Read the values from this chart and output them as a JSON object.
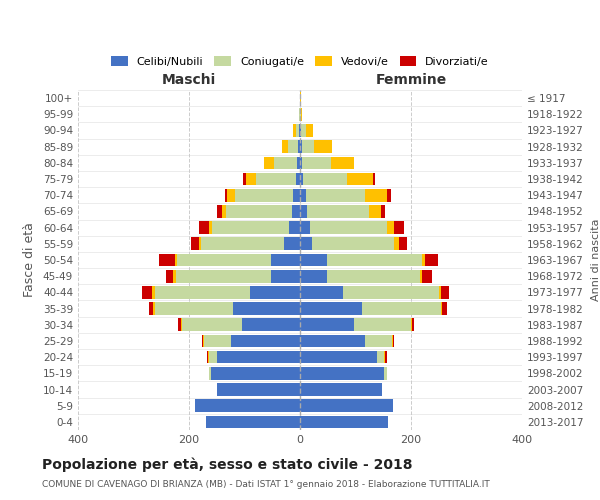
{
  "age_groups": [
    "100+",
    "95-99",
    "90-94",
    "85-89",
    "80-84",
    "75-79",
    "70-74",
    "65-69",
    "60-64",
    "55-59",
    "50-54",
    "45-49",
    "40-44",
    "35-39",
    "30-34",
    "25-29",
    "20-24",
    "15-19",
    "10-14",
    "5-9",
    "0-4"
  ],
  "birth_years": [
    "≤ 1917",
    "1918-1922",
    "1923-1927",
    "1928-1932",
    "1933-1937",
    "1938-1942",
    "1943-1947",
    "1948-1952",
    "1953-1957",
    "1958-1962",
    "1963-1967",
    "1968-1972",
    "1973-1977",
    "1978-1982",
    "1983-1987",
    "1988-1992",
    "1993-1997",
    "1998-2002",
    "2003-2007",
    "2008-2012",
    "2013-2017"
  ],
  "colors": {
    "celibi": "#4472c4",
    "coniugati": "#c5d9a0",
    "vedovi": "#ffc000",
    "divorziati": "#cc0000",
    "background": "#ffffff",
    "grid": "#cccccc"
  },
  "maschi": {
    "celibi": [
      0,
      0,
      2,
      3,
      5,
      8,
      12,
      15,
      20,
      28,
      52,
      52,
      90,
      120,
      105,
      125,
      150,
      160,
      150,
      190,
      170
    ],
    "coniugati": [
      0,
      1,
      5,
      18,
      42,
      72,
      105,
      118,
      138,
      150,
      170,
      172,
      172,
      142,
      108,
      48,
      14,
      4,
      0,
      0,
      0
    ],
    "vedovi": [
      0,
      1,
      5,
      12,
      18,
      18,
      14,
      8,
      6,
      4,
      4,
      4,
      4,
      2,
      2,
      1,
      1,
      0,
      0,
      0,
      0
    ],
    "divorziati": [
      0,
      0,
      0,
      0,
      0,
      4,
      5,
      8,
      18,
      14,
      28,
      14,
      18,
      8,
      4,
      2,
      2,
      0,
      0,
      0,
      0
    ]
  },
  "femmine": {
    "celibi": [
      0,
      0,
      2,
      3,
      4,
      6,
      10,
      12,
      18,
      22,
      48,
      48,
      78,
      112,
      98,
      118,
      138,
      152,
      148,
      168,
      158
    ],
    "coniugati": [
      0,
      1,
      8,
      22,
      52,
      78,
      108,
      112,
      138,
      148,
      172,
      168,
      172,
      142,
      102,
      48,
      14,
      4,
      0,
      0,
      0
    ],
    "vedovi": [
      1,
      3,
      14,
      32,
      42,
      48,
      38,
      22,
      14,
      8,
      6,
      4,
      4,
      2,
      2,
      2,
      2,
      0,
      0,
      0,
      0
    ],
    "divorziati": [
      0,
      0,
      0,
      0,
      0,
      4,
      8,
      8,
      18,
      14,
      22,
      18,
      14,
      8,
      4,
      2,
      2,
      0,
      0,
      0,
      0
    ]
  },
  "xlim": 400,
  "title": "Popolazione per età, sesso e stato civile - 2018",
  "subtitle": "COMUNE DI CAVENAGO DI BRIANZA (MB) - Dati ISTAT 1° gennaio 2018 - Elaborazione TUTTITALIA.IT",
  "ylabel_left": "Fasce di età",
  "ylabel_right": "Anni di nascita",
  "xlabel_maschi": "Maschi",
  "xlabel_femmine": "Femmine"
}
